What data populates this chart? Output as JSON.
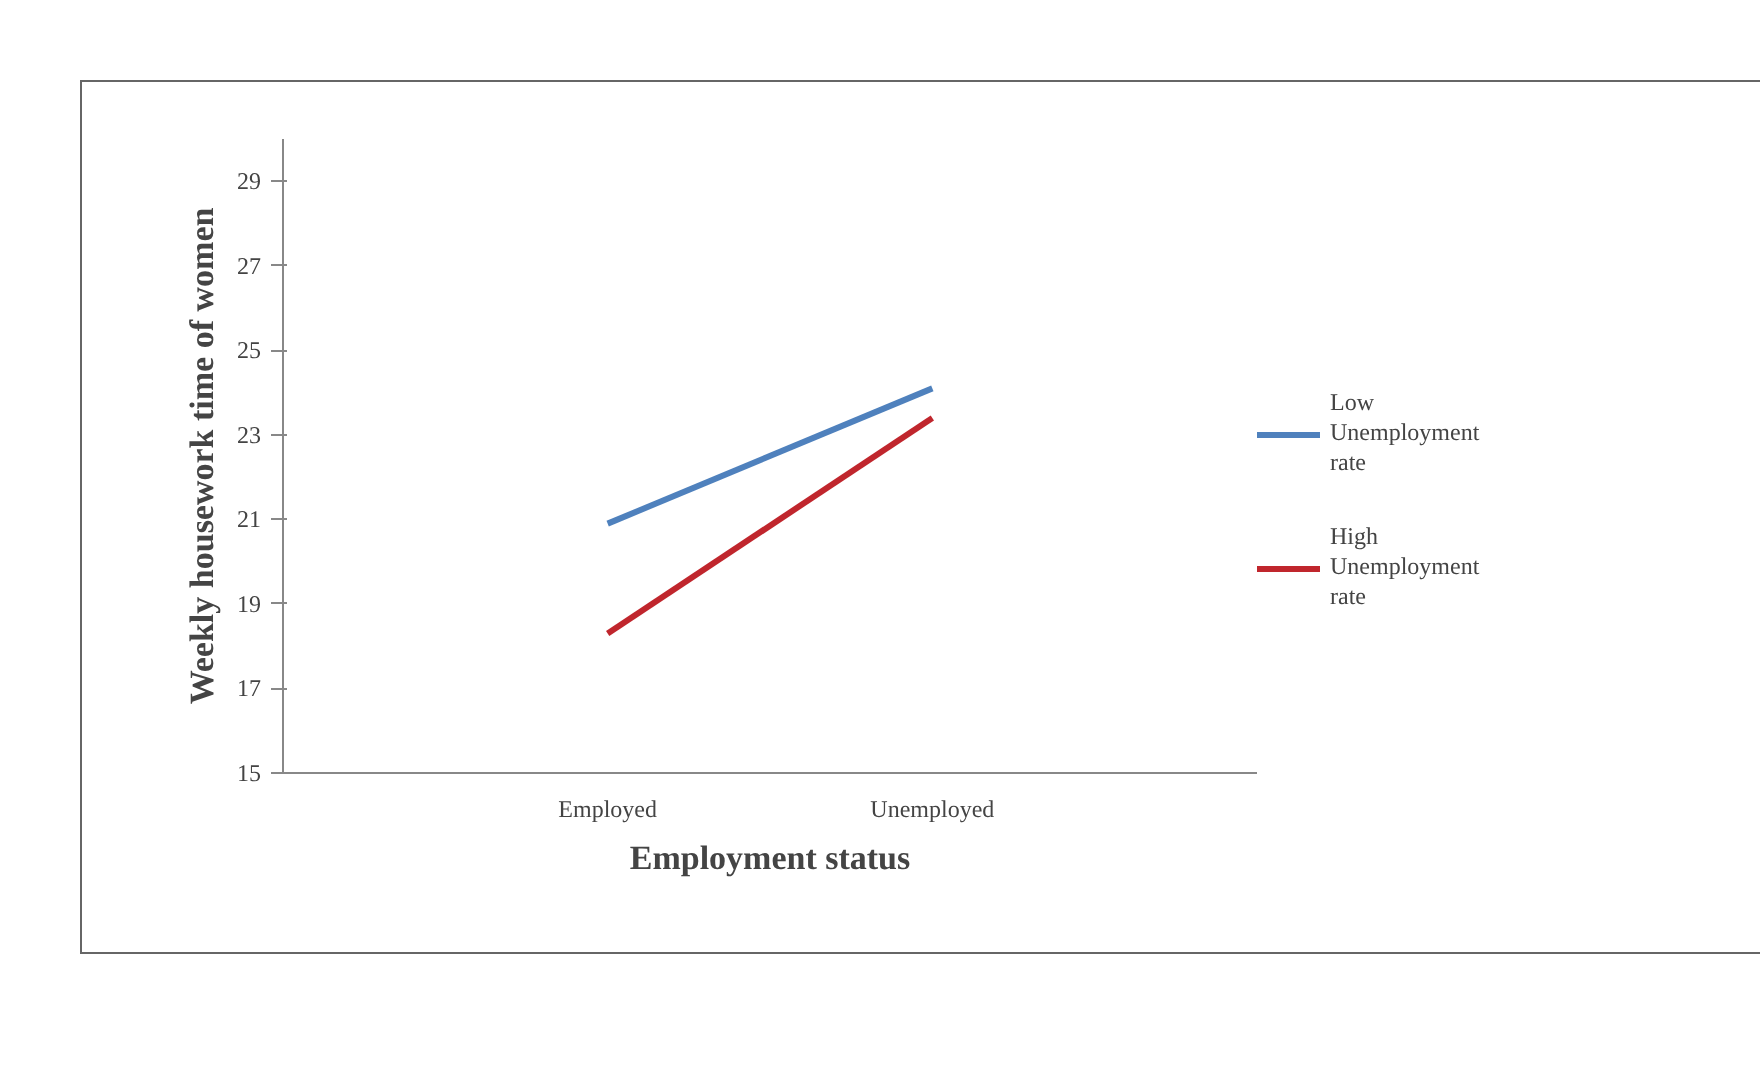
{
  "chart_data": {
    "type": "line",
    "xlabel": "Employment status",
    "ylabel": "Weekly housework time of women",
    "categories": [
      "Employed",
      "Unemployed"
    ],
    "series": [
      {
        "name": "Low Unemployment rate",
        "color": "#4f81bd",
        "values": [
          20.9,
          24.1
        ]
      },
      {
        "name": "High Unemployment rate",
        "color": "#c0262d",
        "values": [
          18.3,
          23.4
        ]
      }
    ],
    "ylim": [
      15,
      30
    ],
    "yticks": [
      15,
      17,
      19,
      21,
      23,
      25,
      27,
      29
    ],
    "grid": false,
    "legend": "right",
    "marker": "none",
    "line_style": "solid"
  }
}
